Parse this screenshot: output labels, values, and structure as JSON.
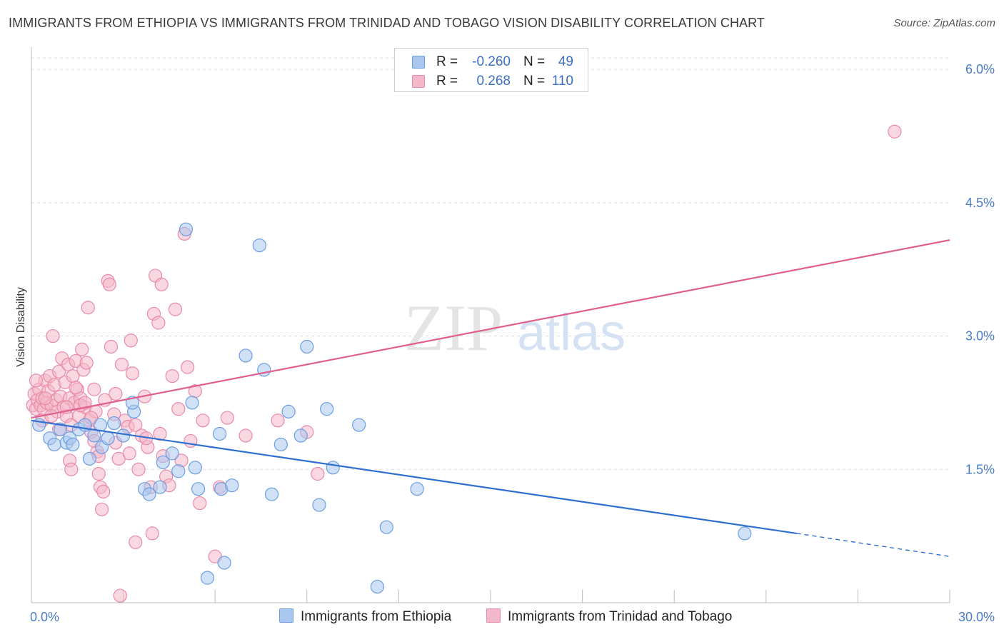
{
  "title": "IMMIGRANTS FROM ETHIOPIA VS IMMIGRANTS FROM TRINIDAD AND TOBAGO VISION DISABILITY CORRELATION CHART",
  "source": "Source: ZipAtlas.com",
  "watermark": {
    "zip": "ZIP",
    "atlas": "atlas"
  },
  "legend": {
    "rows": [
      {
        "r_label": "R =",
        "r_value": "-0.260",
        "n_label": "N =",
        "n_value": "49",
        "color": "#a9c6ef"
      },
      {
        "r_label": "R =",
        "r_value": "0.268",
        "n_label": "N =",
        "n_value": "110",
        "color": "#f4b8cb"
      }
    ]
  },
  "colors": {
    "ethiopia_fill": "#a9c6ef",
    "ethiopia_stroke": "#6a9ee0",
    "ethiopia_line": "#2f6fcf",
    "trinidad_fill": "#f4b8cb",
    "trinidad_stroke": "#e88aa8",
    "trinidad_line": "#e05f8c",
    "grid": "#dddddd",
    "tick_text": "#4a7cc7"
  },
  "chart_data": {
    "type": "scatter",
    "title": "IMMIGRANTS FROM ETHIOPIA VS IMMIGRANTS FROM TRINIDAD AND TOBAGO VISION DISABILITY CORRELATION CHART",
    "xlabel": "",
    "ylabel": "Vision Disability",
    "xlim": [
      0,
      30
    ],
    "ylim": [
      0,
      6.25
    ],
    "x_ticks": [
      {
        "value": 0,
        "label": "0.0%"
      },
      {
        "value": 30,
        "label": "30.0%"
      }
    ],
    "y_ticks": [
      {
        "value": 1.5,
        "label": "1.5%"
      },
      {
        "value": 3.0,
        "label": "3.0%"
      },
      {
        "value": 4.5,
        "label": "4.5%"
      },
      {
        "value": 6.0,
        "label": "6.0%"
      }
    ],
    "grid": true,
    "legend_position": "top-center",
    "series": [
      {
        "name": "Immigrants from Ethiopia",
        "r": -0.26,
        "n": 49,
        "trend": {
          "x0": 0,
          "y0": 2.05,
          "x1": 25.0,
          "y1": 0.78,
          "dash_to_x": 30,
          "dash_to_y": 0.52
        },
        "points": [
          [
            0.25,
            2.0
          ],
          [
            0.6,
            1.85
          ],
          [
            0.75,
            1.78
          ],
          [
            0.95,
            1.95
          ],
          [
            1.15,
            1.8
          ],
          [
            1.25,
            1.85
          ],
          [
            1.55,
            1.95
          ],
          [
            1.75,
            2.0
          ],
          [
            1.9,
            1.62
          ],
          [
            2.05,
            1.88
          ],
          [
            2.3,
            1.75
          ],
          [
            2.5,
            1.85
          ],
          [
            2.7,
            2.02
          ],
          [
            3.0,
            1.88
          ],
          [
            3.35,
            2.15
          ],
          [
            3.7,
            1.28
          ],
          [
            3.85,
            1.22
          ],
          [
            4.2,
            1.3
          ],
          [
            4.3,
            1.58
          ],
          [
            4.6,
            1.68
          ],
          [
            4.8,
            1.48
          ],
          [
            5.05,
            4.2
          ],
          [
            5.25,
            2.25
          ],
          [
            5.35,
            1.52
          ],
          [
            5.45,
            1.28
          ],
          [
            5.75,
            0.28
          ],
          [
            6.15,
            1.9
          ],
          [
            6.2,
            1.28
          ],
          [
            6.3,
            0.45
          ],
          [
            6.55,
            1.32
          ],
          [
            7.0,
            2.78
          ],
          [
            7.45,
            4.02
          ],
          [
            7.6,
            2.62
          ],
          [
            7.85,
            1.22
          ],
          [
            8.15,
            1.78
          ],
          [
            8.4,
            2.15
          ],
          [
            8.8,
            1.88
          ],
          [
            9.0,
            2.88
          ],
          [
            9.4,
            1.1
          ],
          [
            9.65,
            2.18
          ],
          [
            9.85,
            1.52
          ],
          [
            10.7,
            2.0
          ],
          [
            11.3,
            0.18
          ],
          [
            11.6,
            0.85
          ],
          [
            12.6,
            1.28
          ],
          [
            2.25,
            2.0
          ],
          [
            3.3,
            2.25
          ],
          [
            1.35,
            1.78
          ],
          [
            23.3,
            0.78
          ]
        ]
      },
      {
        "name": "Immigrants from Trinidad and Tobago",
        "r": 0.268,
        "n": 110,
        "trend": {
          "x0": 0,
          "y0": 2.08,
          "x1": 30,
          "y1": 4.08
        },
        "points": [
          [
            0.05,
            2.22
          ],
          [
            0.1,
            2.35
          ],
          [
            0.15,
            2.18
          ],
          [
            0.2,
            2.28
          ],
          [
            0.25,
            2.4
          ],
          [
            0.3,
            2.22
          ],
          [
            0.35,
            2.3
          ],
          [
            0.4,
            2.18
          ],
          [
            0.45,
            2.5
          ],
          [
            0.5,
            2.25
          ],
          [
            0.55,
            2.38
          ],
          [
            0.6,
            2.55
          ],
          [
            0.65,
            2.22
          ],
          [
            0.7,
            3.0
          ],
          [
            0.75,
            2.45
          ],
          [
            0.8,
            2.28
          ],
          [
            0.85,
            2.15
          ],
          [
            0.9,
            2.6
          ],
          [
            0.95,
            2.32
          ],
          [
            1.0,
            2.75
          ],
          [
            1.05,
            2.2
          ],
          [
            1.1,
            2.48
          ],
          [
            1.15,
            2.1
          ],
          [
            1.2,
            2.68
          ],
          [
            1.25,
            2.3
          ],
          [
            1.3,
            2.0
          ],
          [
            1.35,
            2.55
          ],
          [
            1.4,
            2.25
          ],
          [
            1.45,
            2.72
          ],
          [
            1.5,
            2.4
          ],
          [
            1.55,
            2.1
          ],
          [
            1.6,
            2.3
          ],
          [
            1.65,
            2.85
          ],
          [
            1.7,
            2.62
          ],
          [
            1.75,
            2.2
          ],
          [
            1.8,
            2.7
          ],
          [
            1.85,
            3.32
          ],
          [
            1.9,
            2.05
          ],
          [
            1.95,
            1.92
          ],
          [
            2.05,
            2.4
          ],
          [
            2.1,
            2.15
          ],
          [
            2.15,
            1.7
          ],
          [
            2.2,
            1.45
          ],
          [
            2.25,
            1.3
          ],
          [
            2.3,
            1.05
          ],
          [
            2.4,
            2.28
          ],
          [
            2.5,
            3.62
          ],
          [
            2.55,
            3.58
          ],
          [
            2.6,
            2.88
          ],
          [
            2.7,
            2.12
          ],
          [
            2.75,
            1.8
          ],
          [
            2.85,
            1.62
          ],
          [
            2.95,
            2.68
          ],
          [
            3.05,
            2.05
          ],
          [
            3.15,
            1.98
          ],
          [
            3.25,
            2.95
          ],
          [
            3.3,
            2.58
          ],
          [
            3.4,
            2.0
          ],
          [
            3.5,
            1.5
          ],
          [
            3.6,
            1.88
          ],
          [
            3.7,
            2.32
          ],
          [
            3.8,
            1.75
          ],
          [
            3.9,
            1.3
          ],
          [
            4.0,
            3.25
          ],
          [
            4.05,
            3.68
          ],
          [
            4.15,
            3.15
          ],
          [
            4.25,
            3.58
          ],
          [
            4.3,
            1.65
          ],
          [
            4.4,
            1.42
          ],
          [
            4.5,
            1.32
          ],
          [
            4.6,
            2.55
          ],
          [
            4.7,
            3.3
          ],
          [
            4.8,
            2.18
          ],
          [
            4.9,
            1.6
          ],
          [
            5.0,
            4.15
          ],
          [
            5.1,
            2.65
          ],
          [
            5.2,
            1.82
          ],
          [
            5.35,
            2.38
          ],
          [
            5.5,
            1.12
          ],
          [
            5.6,
            2.05
          ],
          [
            6.0,
            0.52
          ],
          [
            6.15,
            1.3
          ],
          [
            6.4,
            2.08
          ],
          [
            7.0,
            1.88
          ],
          [
            8.05,
            2.05
          ],
          [
            9.0,
            1.92
          ],
          [
            9.35,
            1.45
          ],
          [
            3.4,
            0.68
          ],
          [
            3.95,
            0.78
          ],
          [
            2.9,
            0.08
          ],
          [
            1.15,
            2.2
          ],
          [
            0.35,
            2.05
          ],
          [
            1.6,
            2.22
          ],
          [
            0.45,
            2.3
          ],
          [
            1.25,
            1.6
          ],
          [
            1.75,
            2.25
          ],
          [
            2.05,
            1.82
          ],
          [
            2.35,
            1.25
          ],
          [
            0.9,
            1.95
          ],
          [
            1.45,
            2.42
          ],
          [
            2.2,
            1.65
          ],
          [
            3.75,
            1.85
          ],
          [
            0.15,
            2.5
          ],
          [
            0.65,
            2.1
          ],
          [
            1.95,
            2.08
          ],
          [
            2.75,
            2.35
          ],
          [
            4.2,
            1.9
          ],
          [
            1.3,
            1.5
          ],
          [
            3.2,
            1.68
          ],
          [
            28.2,
            5.3
          ]
        ]
      }
    ]
  },
  "bottom_legend": [
    {
      "label": "Immigrants from Ethiopia"
    },
    {
      "label": "Immigrants from Trinidad and Tobago"
    }
  ]
}
